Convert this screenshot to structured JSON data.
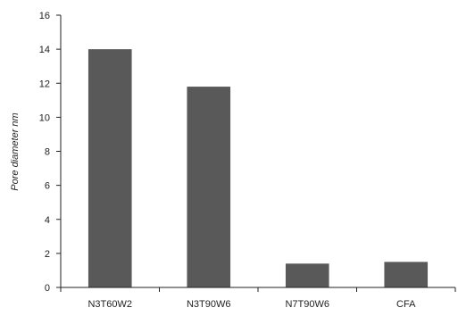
{
  "colors": {
    "bar": "#595959",
    "axis": "#222222",
    "background": "#ffffff"
  },
  "chart_data": {
    "type": "bar",
    "title": "",
    "xlabel": "",
    "ylabel": "Pore diameter nm",
    "categories": [
      "N3T60W2",
      "N3T90W6",
      "N7T90W6",
      "CFA"
    ],
    "values": [
      14.0,
      11.8,
      1.4,
      1.5
    ],
    "ylim": [
      0,
      16
    ],
    "yticks": [
      "0",
      "2",
      "4",
      "6",
      "8",
      "10",
      "12",
      "14",
      "16"
    ],
    "grid": false,
    "legend": "none"
  }
}
